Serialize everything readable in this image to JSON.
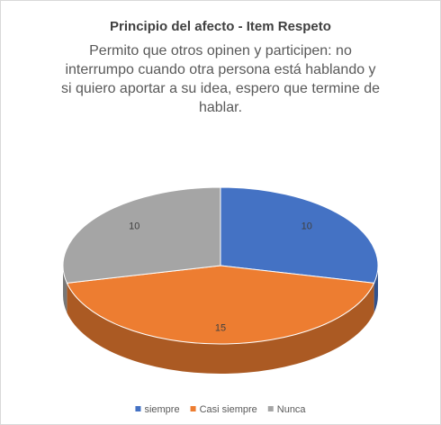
{
  "chart_data": {
    "type": "pie3d",
    "title": "Principio del afecto - Item Respeto",
    "subtitle": [
      "Permito que otros opinen y participen: no",
      "interrumpo cuando otra persona está hablando y",
      "si quiero aportar a su idea, espero que termine de",
      "hablar."
    ],
    "categories": [
      "siempre",
      "Casi siempre",
      "Nunca"
    ],
    "values": [
      10,
      15,
      10
    ],
    "colors": [
      "#4472c4",
      "#ed7d31",
      "#a5a5a5"
    ],
    "legend": "bottom"
  }
}
